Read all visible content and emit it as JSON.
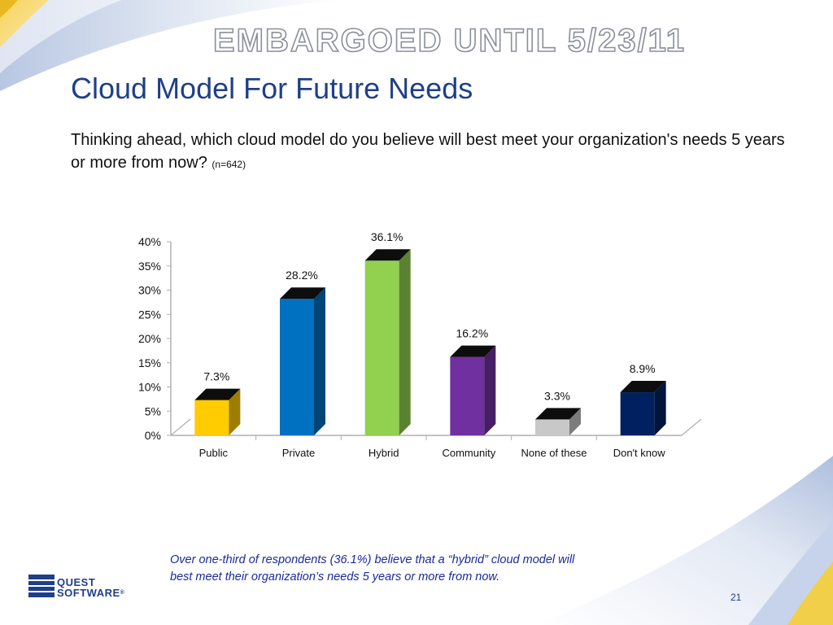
{
  "slide": {
    "embargo": "EMBARGOED UNTIL  5/23/11",
    "title": "Cloud Model For Future Needs",
    "question": "Thinking ahead, which cloud model do you believe will best meet your organization's needs 5 years or more from now?",
    "n_label": "(n=642)",
    "note_line1": "Over one-third of respondents (36.1%) believe that a “hybrid” cloud model will",
    "note_line2": "best meet their organization’s needs 5 years or more from now.",
    "logo_line1": "QUEST",
    "logo_line2": "SOFTWARE",
    "logo_reg": "®",
    "page_number": "21"
  },
  "colors": {
    "title": "#1f3f87",
    "note": "#1a2a9c"
  },
  "chart_data": {
    "type": "bar",
    "categories": [
      "Public",
      "Private",
      "Hybrid",
      "Community",
      "None of these",
      "Don't know"
    ],
    "values": [
      7.3,
      28.2,
      36.1,
      16.2,
      3.3,
      8.9
    ],
    "data_labels": [
      "7.3%",
      "28.2%",
      "36.1%",
      "16.2%",
      "3.3%",
      "8.9%"
    ],
    "bar_colors": [
      "#ffcc00",
      "#0070c0",
      "#92d050",
      "#7030a0",
      "#c8c8c8",
      "#002060"
    ],
    "yticks": [
      "0%",
      "5%",
      "10%",
      "15%",
      "20%",
      "25%",
      "30%",
      "35%",
      "40%"
    ],
    "ylim": [
      0,
      40
    ],
    "title": "",
    "xlabel": "",
    "ylabel": "",
    "grid": false,
    "legend": "none",
    "three_d": true
  }
}
